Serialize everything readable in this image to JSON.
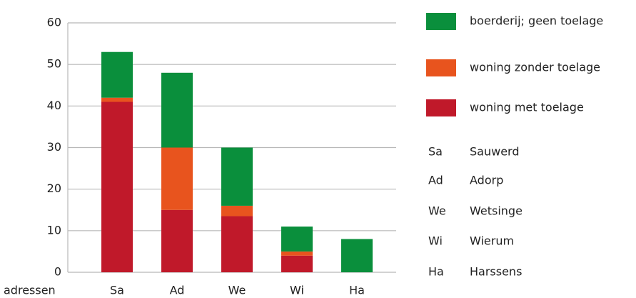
{
  "chart_data": {
    "type": "stacked_bar",
    "x_label": "adressen",
    "categories": [
      "Sa",
      "Ad",
      "We",
      "Wi",
      "Ha"
    ],
    "series": [
      {
        "name": "boerderij; geen toelage",
        "color": "#0a8f3c",
        "values": [
          11,
          18,
          14,
          6,
          8
        ]
      },
      {
        "name": "woning zonder toelage",
        "color": "#e8541e",
        "values": [
          1,
          15,
          2.5,
          1,
          0
        ]
      },
      {
        "name": "woning met toelage",
        "color": "#c0192a",
        "values": [
          41,
          15,
          13.5,
          4,
          0
        ]
      }
    ],
    "abbreviations": [
      {
        "code": "Sa",
        "name": "Sauwerd"
      },
      {
        "code": "Ad",
        "name": "Adorp"
      },
      {
        "code": "We",
        "name": "Wetsinge"
      },
      {
        "code": "Wi",
        "name": "Wierum"
      },
      {
        "code": "Ha",
        "name": "Harssens"
      }
    ],
    "ylim": [
      0,
      60
    ],
    "yticks": [
      0,
      10,
      20,
      30,
      40,
      50,
      60
    ],
    "grid": true
  }
}
